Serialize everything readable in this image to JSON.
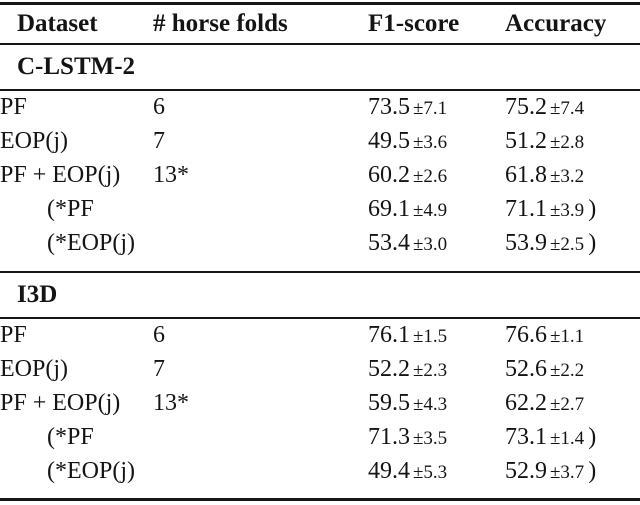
{
  "table": {
    "headers": {
      "dataset": "Dataset",
      "folds": "# horse folds",
      "f1": "F1-score",
      "accuracy": "Accuracy"
    },
    "paren_close": ")",
    "sections": [
      {
        "title": "C-LSTM-2",
        "rows": [
          {
            "dataset": "PF",
            "folds": "6",
            "f1": "73.5",
            "f1_std": "±7.1",
            "acc": "75.2",
            "acc_std": "±7.4",
            "indent": false,
            "paren": false
          },
          {
            "dataset": "EOP(j)",
            "folds": "7",
            "f1": "49.5",
            "f1_std": "±3.6",
            "acc": "51.2",
            "acc_std": "±2.8",
            "indent": false,
            "paren": false
          },
          {
            "dataset": "PF + EOP(j)",
            "folds": "13*",
            "f1": "60.2",
            "f1_std": "±2.6",
            "acc": "61.8",
            "acc_std": "±3.2",
            "indent": false,
            "paren": false
          },
          {
            "dataset": "(*PF",
            "folds": "",
            "f1": "69.1",
            "f1_std": "±4.9",
            "acc": "71.1",
            "acc_std": "±3.9",
            "indent": true,
            "paren": true
          },
          {
            "dataset": "(*EOP(j)",
            "folds": "",
            "f1": "53.4",
            "f1_std": "±3.0",
            "acc": "53.9",
            "acc_std": "±2.5",
            "indent": true,
            "paren": true
          }
        ]
      },
      {
        "title": "I3D",
        "rows": [
          {
            "dataset": "PF",
            "folds": "6",
            "f1": "76.1",
            "f1_std": "±1.5",
            "acc": "76.6",
            "acc_std": "±1.1",
            "indent": false,
            "paren": false
          },
          {
            "dataset": "EOP(j)",
            "folds": "7",
            "f1": "52.2",
            "f1_std": "±2.3",
            "acc": "52.6",
            "acc_std": "±2.2",
            "indent": false,
            "paren": false
          },
          {
            "dataset": "PF + EOP(j)",
            "folds": "13*",
            "f1": "59.5",
            "f1_std": "±4.3",
            "acc": "62.2",
            "acc_std": "±2.7",
            "indent": false,
            "paren": false
          },
          {
            "dataset": "(*PF",
            "folds": "",
            "f1": "71.3",
            "f1_std": "±3.5",
            "acc": "73.1",
            "acc_std": "±1.4",
            "indent": true,
            "paren": true
          },
          {
            "dataset": "(*EOP(j)",
            "folds": "",
            "f1": "49.4",
            "f1_std": "±5.3",
            "acc": "52.9",
            "acc_std": "±3.7",
            "indent": true,
            "paren": true
          }
        ]
      }
    ]
  }
}
